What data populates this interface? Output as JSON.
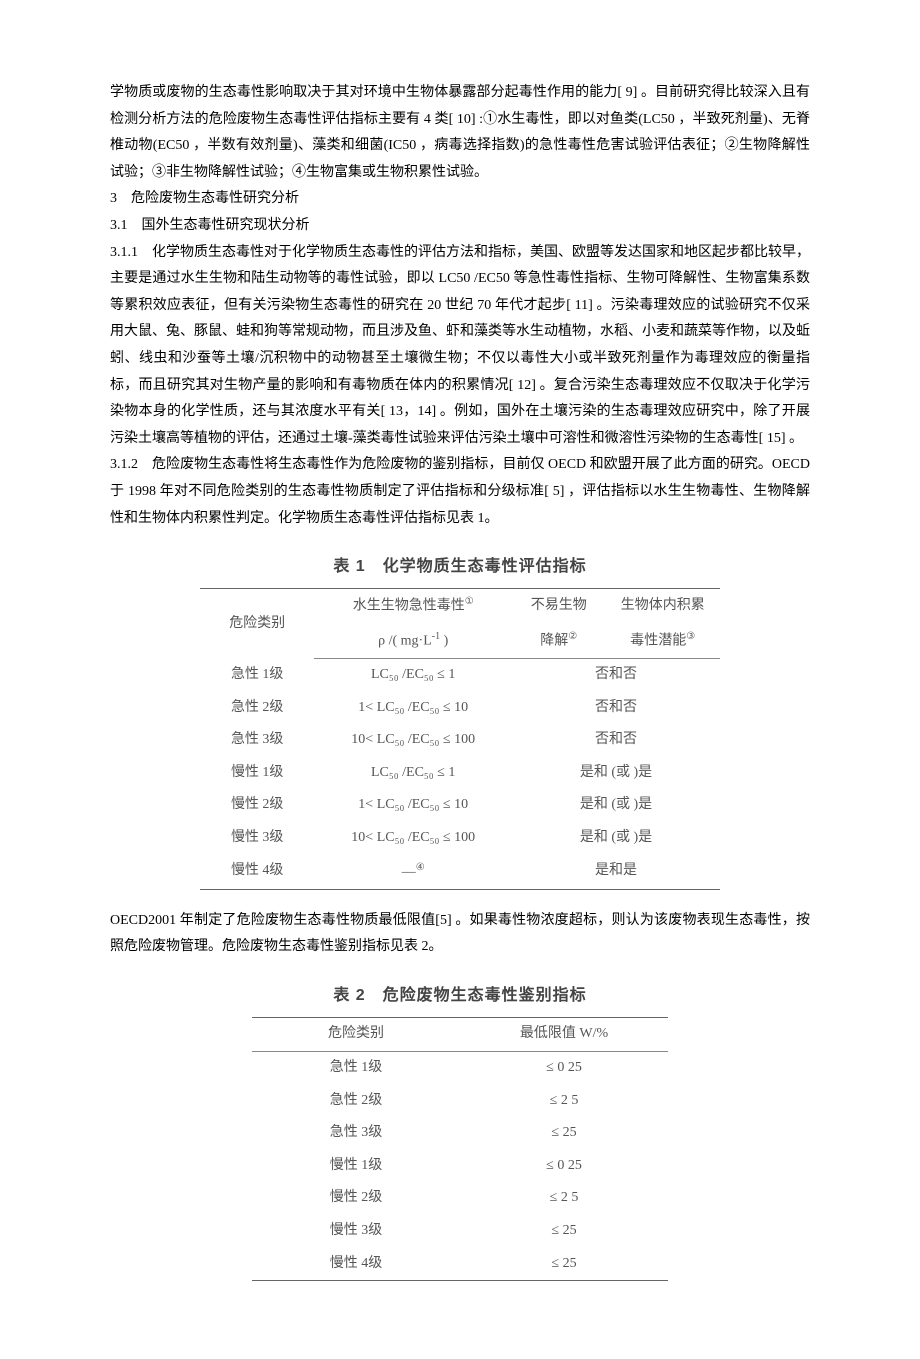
{
  "paragraphs": {
    "p1": "学物质或废物的生态毒性影响取决于其对环境中生物体暴露部分起毒性作用的能力[ 9] 。目前研究得比较深入且有检测分析方法的危险废物生态毒性评估指标主要有 4 类[ 10] :①水生毒性，即以对鱼类(LC50 ，半致死剂量)、无脊椎动物(EC50 ，半数有效剂量)、藻类和细菌(IC50 ，病毒选择指数)的急性毒性危害试验评估表征；②生物降解性试验；③非生物降解性试验；④生物富集或生物积累性试验。",
    "h3": "3　危险废物生态毒性研究分析",
    "h31": "3.1　国外生态毒性研究现状分析",
    "p311": "3.1.1　化学物质生态毒性对于化学物质生态毒性的评估方法和指标，美国、欧盟等发达国家和地区起步都比较早，主要是通过水生生物和陆生动物等的毒性试验，即以 LC50 /EC50 等急性毒性指标、生物可降解性、生物富集系数等累积效应表征，但有关污染物生态毒性的研究在 20 世纪 70 年代才起步[ 11] 。污染毒理效应的试验研究不仅采用大鼠、兔、豚鼠、蛙和狗等常规动物，而且涉及鱼、虾和藻类等水生动植物，水稻、小麦和蔬菜等作物，以及蚯蚓、线虫和沙蚕等土壤/沉积物中的动物甚至土壤微生物；不仅以毒性大小或半致死剂量作为毒理效应的衡量指标，而且研究其对生物产量的影响和有毒物质在体内的积累情况[ 12] 。复合污染生态毒理效应不仅取决于化学污染物本身的化学性质，还与其浓度水平有关[ 13，14] 。例如，国外在土壤污染的生态毒理效应研究中，除了开展污染土壤高等植物的评估，还通过土壤-藻类毒性试验来评估污染土壤中可溶性和微溶性污染物的生态毒性[ 15] 。",
    "p312": "3.1.2　危险废物生态毒性将生态毒性作为危险废物的鉴别指标，目前仅 OECD 和欧盟开展了此方面的研究。OECD 于 1998 年对不同危险类别的生态毒性物质制定了评估指标和分级标准[ 5] ，评估指标以水生生物毒性、生物降解性和生物体内积累性判定。化学物质生态毒性评估指标见表 1。",
    "p_between": "OECD2001 年制定了危险废物生态毒性物质最低限值[5] 。如果毒性物浓度超标，则认为该废物表现生态毒性，按照危险废物管理。危险废物生态毒性鉴别指标见表 2。"
  },
  "table1": {
    "title": "表 1　化学物质生态毒性评估指标",
    "head": {
      "cat": "危险类别",
      "aq_line1": "水生生物急性毒性",
      "aq_sup": "①",
      "aq_line2_prefix": "ρ /( mg·",
      "aq_line2_unit": "L",
      "aq_line2_exp": "-1",
      "aq_line2_suffix": " )",
      "bd_line1": "不易生物",
      "bd_line2": "降解",
      "bd_sup": "②",
      "acc_line1": "生物体内积累",
      "acc_line2": "毒性潜能",
      "acc_sup": "③"
    },
    "rows": [
      {
        "cat": "急性 1级",
        "aq": "LC₅₀ /EC₅₀ ≤ 1",
        "merged": "否和否"
      },
      {
        "cat": "急性 2级",
        "aq": "1< LC₅₀ /EC₅₀ ≤ 10",
        "merged": "否和否"
      },
      {
        "cat": "急性 3级",
        "aq": "10< LC₅₀ /EC₅₀ ≤ 100",
        "merged": "否和否"
      },
      {
        "cat": "慢性 1级",
        "aq": "LC₅₀ /EC₅₀ ≤ 1",
        "merged": "是和 (或 )是"
      },
      {
        "cat": "慢性 2级",
        "aq": "1< LC₅₀ /EC₅₀ ≤ 10",
        "merged": "是和 (或 )是"
      },
      {
        "cat": "慢性 3级",
        "aq": "10< LC₅₀ /EC₅₀ ≤ 100",
        "merged": "是和 (或 )是"
      },
      {
        "cat": "慢性 4级",
        "aq": "—",
        "aq_sup": "④",
        "merged": "是和是"
      }
    ]
  },
  "table2": {
    "title": "表 2　危险废物生态毒性鉴别指标",
    "head": {
      "cat": "危险类别",
      "lim_prefix": "最低限值 W",
      "lim_suffix": "/%"
    },
    "rows": [
      {
        "cat": "急性 1级",
        "lim": "≤ 0  25"
      },
      {
        "cat": "急性 2级",
        "lim": "≤ 2  5"
      },
      {
        "cat": "急性 3级",
        "lim": "≤ 25"
      },
      {
        "cat": "慢性 1级",
        "lim": "≤ 0  25"
      },
      {
        "cat": "慢性 2级",
        "lim": "≤ 2  5"
      },
      {
        "cat": "慢性 3级",
        "lim": "≤ 25"
      },
      {
        "cat": "慢性 4级",
        "lim": "≤ 25"
      }
    ]
  }
}
